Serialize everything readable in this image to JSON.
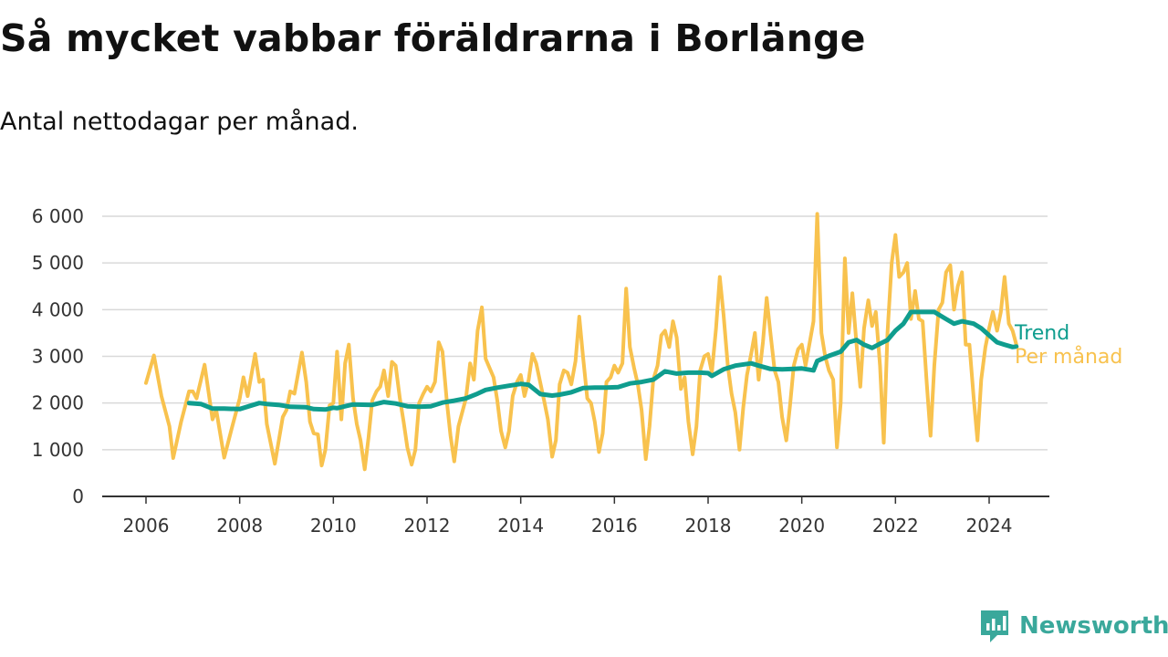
{
  "title": "Så mycket vabbar föräldrarna i Borlänge",
  "subtitle": "Antal nettodagar per månad.",
  "brand": "Newsworthy",
  "colors": {
    "per_month": "#f8c24e",
    "trend": "#0f9d8e",
    "grid": "#d9d9d9",
    "axis": "#333333"
  },
  "chart_data": {
    "type": "line",
    "grid": true,
    "legend_placement": "right, at line ends",
    "x_axis": {
      "range": [
        2006,
        2024.5
      ],
      "tick_values": [
        2006,
        2008,
        2010,
        2012,
        2014,
        2016,
        2018,
        2020,
        2022,
        2024
      ],
      "tick_labels": [
        "2006",
        "2008",
        "2010",
        "2012",
        "2014",
        "2016",
        "2018",
        "2020",
        "2022",
        "2024"
      ]
    },
    "y_axis": {
      "range": [
        0,
        6000
      ],
      "tick_values": [
        0,
        1000,
        2000,
        3000,
        4000,
        5000,
        6000
      ],
      "tick_labels": [
        "0",
        "1 000",
        "2 000",
        "3 000",
        "4 000",
        "5 000",
        "6 000"
      ]
    },
    "series": [
      {
        "name": "Per månad",
        "color": "#f8c24e",
        "points": [
          [
            2006.0,
            2430
          ],
          [
            2006.17,
            3020
          ],
          [
            2006.33,
            2150
          ],
          [
            2006.5,
            1500
          ],
          [
            2006.58,
            820
          ],
          [
            2006.75,
            1600
          ],
          [
            2006.92,
            2250
          ],
          [
            2007.0,
            2250
          ],
          [
            2007.08,
            2100
          ],
          [
            2007.25,
            2820
          ],
          [
            2007.42,
            1650
          ],
          [
            2007.5,
            1850
          ],
          [
            2007.67,
            830
          ],
          [
            2007.83,
            1450
          ],
          [
            2008.0,
            2100
          ],
          [
            2008.08,
            2550
          ],
          [
            2008.17,
            2150
          ],
          [
            2008.33,
            3050
          ],
          [
            2008.42,
            2450
          ],
          [
            2008.5,
            2500
          ],
          [
            2008.58,
            1550
          ],
          [
            2008.75,
            700
          ],
          [
            2008.92,
            1700
          ],
          [
            2009.0,
            1850
          ],
          [
            2009.08,
            2250
          ],
          [
            2009.17,
            2200
          ],
          [
            2009.33,
            3080
          ],
          [
            2009.42,
            2450
          ],
          [
            2009.5,
            1600
          ],
          [
            2009.58,
            1350
          ],
          [
            2009.67,
            1330
          ],
          [
            2009.75,
            660
          ],
          [
            2009.83,
            1000
          ],
          [
            2009.92,
            1950
          ],
          [
            2010.0,
            2000
          ],
          [
            2010.08,
            3100
          ],
          [
            2010.17,
            1650
          ],
          [
            2010.25,
            2850
          ],
          [
            2010.33,
            3250
          ],
          [
            2010.42,
            2100
          ],
          [
            2010.5,
            1550
          ],
          [
            2010.58,
            1200
          ],
          [
            2010.67,
            580
          ],
          [
            2010.75,
            1250
          ],
          [
            2010.83,
            2050
          ],
          [
            2010.92,
            2250
          ],
          [
            2011.0,
            2350
          ],
          [
            2011.08,
            2700
          ],
          [
            2011.17,
            2150
          ],
          [
            2011.25,
            2880
          ],
          [
            2011.33,
            2800
          ],
          [
            2011.42,
            2100
          ],
          [
            2011.5,
            1600
          ],
          [
            2011.58,
            1050
          ],
          [
            2011.67,
            680
          ],
          [
            2011.75,
            1000
          ],
          [
            2011.83,
            2000
          ],
          [
            2011.92,
            2200
          ],
          [
            2012.0,
            2350
          ],
          [
            2012.08,
            2250
          ],
          [
            2012.17,
            2450
          ],
          [
            2012.25,
            3300
          ],
          [
            2012.33,
            3100
          ],
          [
            2012.42,
            2050
          ],
          [
            2012.5,
            1300
          ],
          [
            2012.58,
            750
          ],
          [
            2012.67,
            1500
          ],
          [
            2012.83,
            2100
          ],
          [
            2012.92,
            2850
          ],
          [
            2013.0,
            2500
          ],
          [
            2013.08,
            3550
          ],
          [
            2013.17,
            4050
          ],
          [
            2013.25,
            2950
          ],
          [
            2013.42,
            2550
          ],
          [
            2013.5,
            2050
          ],
          [
            2013.58,
            1400
          ],
          [
            2013.67,
            1050
          ],
          [
            2013.75,
            1400
          ],
          [
            2013.83,
            2150
          ],
          [
            2013.92,
            2450
          ],
          [
            2014.0,
            2600
          ],
          [
            2014.08,
            2150
          ],
          [
            2014.17,
            2500
          ],
          [
            2014.25,
            3050
          ],
          [
            2014.33,
            2850
          ],
          [
            2014.5,
            2050
          ],
          [
            2014.58,
            1650
          ],
          [
            2014.67,
            850
          ],
          [
            2014.75,
            1200
          ],
          [
            2014.83,
            2400
          ],
          [
            2014.92,
            2700
          ],
          [
            2015.0,
            2650
          ],
          [
            2015.08,
            2400
          ],
          [
            2015.17,
            2900
          ],
          [
            2015.25,
            3850
          ],
          [
            2015.33,
            3000
          ],
          [
            2015.42,
            2100
          ],
          [
            2015.5,
            2000
          ],
          [
            2015.58,
            1600
          ],
          [
            2015.67,
            950
          ],
          [
            2015.75,
            1350
          ],
          [
            2015.83,
            2450
          ],
          [
            2015.92,
            2550
          ],
          [
            2016.0,
            2800
          ],
          [
            2016.08,
            2650
          ],
          [
            2016.17,
            2850
          ],
          [
            2016.25,
            4450
          ],
          [
            2016.33,
            3200
          ],
          [
            2016.42,
            2750
          ],
          [
            2016.5,
            2400
          ],
          [
            2016.58,
            1850
          ],
          [
            2016.67,
            800
          ],
          [
            2016.75,
            1500
          ],
          [
            2016.83,
            2500
          ],
          [
            2016.92,
            2800
          ],
          [
            2017.0,
            3450
          ],
          [
            2017.08,
            3550
          ],
          [
            2017.17,
            3200
          ],
          [
            2017.25,
            3750
          ],
          [
            2017.33,
            3400
          ],
          [
            2017.42,
            2300
          ],
          [
            2017.5,
            2550
          ],
          [
            2017.58,
            1600
          ],
          [
            2017.67,
            900
          ],
          [
            2017.75,
            1500
          ],
          [
            2017.83,
            2700
          ],
          [
            2017.92,
            3000
          ],
          [
            2018.0,
            3050
          ],
          [
            2018.08,
            2650
          ],
          [
            2018.17,
            3600
          ],
          [
            2018.25,
            4700
          ],
          [
            2018.33,
            3900
          ],
          [
            2018.42,
            2800
          ],
          [
            2018.5,
            2200
          ],
          [
            2018.58,
            1800
          ],
          [
            2018.67,
            1000
          ],
          [
            2018.75,
            1900
          ],
          [
            2018.83,
            2600
          ],
          [
            2018.92,
            3050
          ],
          [
            2019.0,
            3500
          ],
          [
            2019.08,
            2500
          ],
          [
            2019.17,
            3300
          ],
          [
            2019.25,
            4250
          ],
          [
            2019.33,
            3500
          ],
          [
            2019.42,
            2700
          ],
          [
            2019.5,
            2450
          ],
          [
            2019.58,
            1700
          ],
          [
            2019.67,
            1200
          ],
          [
            2019.75,
            1950
          ],
          [
            2019.83,
            2800
          ],
          [
            2019.92,
            3150
          ],
          [
            2020.0,
            3250
          ],
          [
            2020.08,
            2800
          ],
          [
            2020.17,
            3300
          ],
          [
            2020.25,
            3750
          ],
          [
            2020.33,
            6050
          ],
          [
            2020.42,
            3500
          ],
          [
            2020.5,
            3000
          ],
          [
            2020.58,
            2700
          ],
          [
            2020.67,
            2500
          ],
          [
            2020.75,
            1050
          ],
          [
            2020.83,
            2000
          ],
          [
            2020.92,
            5100
          ],
          [
            2021.0,
            3500
          ],
          [
            2021.08,
            4350
          ],
          [
            2021.17,
            3250
          ],
          [
            2021.25,
            2350
          ],
          [
            2021.33,
            3600
          ],
          [
            2021.42,
            4200
          ],
          [
            2021.5,
            3650
          ],
          [
            2021.58,
            3950
          ],
          [
            2021.67,
            2800
          ],
          [
            2021.75,
            1150
          ],
          [
            2021.83,
            3500
          ],
          [
            2021.92,
            5000
          ],
          [
            2022.0,
            5600
          ],
          [
            2022.08,
            4700
          ],
          [
            2022.17,
            4800
          ],
          [
            2022.25,
            5000
          ],
          [
            2022.33,
            3800
          ],
          [
            2022.42,
            4400
          ],
          [
            2022.5,
            3800
          ],
          [
            2022.58,
            3750
          ],
          [
            2022.67,
            2400
          ],
          [
            2022.75,
            1300
          ],
          [
            2022.83,
            2800
          ],
          [
            2022.92,
            4000
          ],
          [
            2023.0,
            4150
          ],
          [
            2023.08,
            4800
          ],
          [
            2023.17,
            4950
          ],
          [
            2023.25,
            4000
          ],
          [
            2023.33,
            4500
          ],
          [
            2023.42,
            4800
          ],
          [
            2023.5,
            3250
          ],
          [
            2023.58,
            3250
          ],
          [
            2023.67,
            2100
          ],
          [
            2023.75,
            1200
          ],
          [
            2023.83,
            2500
          ],
          [
            2023.92,
            3200
          ],
          [
            2024.0,
            3600
          ],
          [
            2024.08,
            3950
          ],
          [
            2024.17,
            3550
          ],
          [
            2024.25,
            3950
          ],
          [
            2024.33,
            4700
          ],
          [
            2024.42,
            3700
          ],
          [
            2024.5,
            3550
          ],
          [
            2024.58,
            3250
          ]
        ]
      },
      {
        "name": "Trend",
        "color": "#0f9d8e",
        "points": [
          [
            2006.92,
            2000
          ],
          [
            2007.17,
            1980
          ],
          [
            2007.42,
            1880
          ],
          [
            2007.67,
            1880
          ],
          [
            2008.0,
            1870
          ],
          [
            2008.42,
            2000
          ],
          [
            2008.58,
            1980
          ],
          [
            2008.83,
            1960
          ],
          [
            2009.08,
            1920
          ],
          [
            2009.42,
            1910
          ],
          [
            2009.58,
            1870
          ],
          [
            2009.83,
            1860
          ],
          [
            2010.0,
            1900
          ],
          [
            2010.08,
            1890
          ],
          [
            2010.42,
            1970
          ],
          [
            2010.83,
            1960
          ],
          [
            2011.08,
            2020
          ],
          [
            2011.33,
            1990
          ],
          [
            2011.58,
            1930
          ],
          [
            2011.83,
            1920
          ],
          [
            2012.08,
            1930
          ],
          [
            2012.33,
            2010
          ],
          [
            2012.58,
            2050
          ],
          [
            2012.83,
            2100
          ],
          [
            2013.08,
            2200
          ],
          [
            2013.25,
            2280
          ],
          [
            2013.5,
            2330
          ],
          [
            2013.75,
            2370
          ],
          [
            2014.0,
            2410
          ],
          [
            2014.17,
            2390
          ],
          [
            2014.42,
            2190
          ],
          [
            2014.67,
            2160
          ],
          [
            2014.83,
            2180
          ],
          [
            2015.08,
            2230
          ],
          [
            2015.33,
            2320
          ],
          [
            2015.58,
            2330
          ],
          [
            2015.83,
            2330
          ],
          [
            2016.08,
            2340
          ],
          [
            2016.33,
            2420
          ],
          [
            2016.58,
            2450
          ],
          [
            2016.83,
            2500
          ],
          [
            2017.08,
            2680
          ],
          [
            2017.33,
            2630
          ],
          [
            2017.58,
            2650
          ],
          [
            2017.83,
            2650
          ],
          [
            2018.0,
            2640
          ],
          [
            2018.08,
            2580
          ],
          [
            2018.33,
            2720
          ],
          [
            2018.58,
            2800
          ],
          [
            2018.92,
            2850
          ],
          [
            2019.08,
            2800
          ],
          [
            2019.33,
            2730
          ],
          [
            2019.58,
            2720
          ],
          [
            2019.83,
            2730
          ],
          [
            2020.0,
            2740
          ],
          [
            2020.25,
            2700
          ],
          [
            2020.33,
            2900
          ],
          [
            2020.58,
            3010
          ],
          [
            2020.83,
            3100
          ],
          [
            2021.0,
            3300
          ],
          [
            2021.17,
            3350
          ],
          [
            2021.33,
            3250
          ],
          [
            2021.5,
            3180
          ],
          [
            2021.67,
            3270
          ],
          [
            2021.83,
            3350
          ],
          [
            2022.0,
            3550
          ],
          [
            2022.17,
            3700
          ],
          [
            2022.33,
            3950
          ],
          [
            2022.58,
            3950
          ],
          [
            2022.83,
            3950
          ],
          [
            2023.08,
            3800
          ],
          [
            2023.25,
            3700
          ],
          [
            2023.42,
            3750
          ],
          [
            2023.67,
            3700
          ],
          [
            2023.83,
            3600
          ],
          [
            2024.0,
            3450
          ],
          [
            2024.17,
            3300
          ],
          [
            2024.33,
            3250
          ],
          [
            2024.5,
            3200
          ],
          [
            2024.58,
            3210
          ]
        ]
      }
    ]
  }
}
